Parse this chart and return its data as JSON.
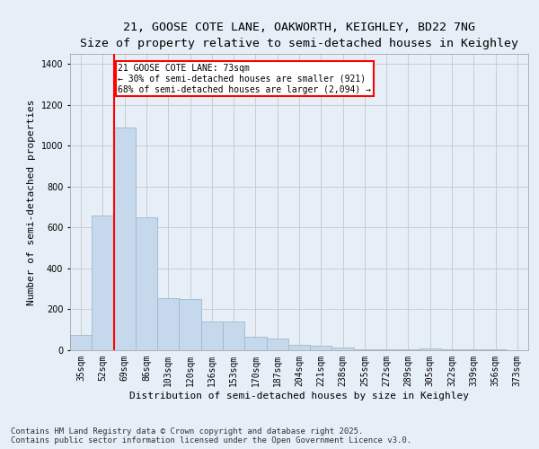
{
  "title_line1": "21, GOOSE COTE LANE, OAKWORTH, KEIGHLEY, BD22 7NG",
  "title_line2": "Size of property relative to semi-detached houses in Keighley",
  "xlabel": "Distribution of semi-detached houses by size in Keighley",
  "ylabel": "Number of semi-detached properties",
  "categories": [
    "35sqm",
    "52sqm",
    "69sqm",
    "86sqm",
    "103sqm",
    "120sqm",
    "136sqm",
    "153sqm",
    "170sqm",
    "187sqm",
    "204sqm",
    "221sqm",
    "238sqm",
    "255sqm",
    "272sqm",
    "289sqm",
    "305sqm",
    "322sqm",
    "339sqm",
    "356sqm",
    "373sqm"
  ],
  "values": [
    75,
    660,
    1090,
    650,
    255,
    250,
    140,
    140,
    65,
    55,
    28,
    20,
    12,
    5,
    4,
    4,
    8,
    6,
    4,
    3,
    2
  ],
  "bar_color": "#c6d9ec",
  "bar_edge_color": "#a0b8cc",
  "grid_color": "#cccccc",
  "background_color": "#e6eef7",
  "vline_bar_index": 2,
  "annotation_text": "21 GOOSE COTE LANE: 73sqm\n← 30% of semi-detached houses are smaller (921)\n68% of semi-detached houses are larger (2,094) →",
  "annotation_box_color": "white",
  "annotation_box_edge_color": "red",
  "vline_color": "red",
  "ylim": [
    0,
    1450
  ],
  "yticks": [
    0,
    200,
    400,
    600,
    800,
    1000,
    1200,
    1400
  ],
  "footer_line1": "Contains HM Land Registry data © Crown copyright and database right 2025.",
  "footer_line2": "Contains public sector information licensed under the Open Government Licence v3.0.",
  "title_fontsize": 9.5,
  "subtitle_fontsize": 8.5,
  "axis_label_fontsize": 8,
  "tick_fontsize": 7,
  "annotation_fontsize": 7,
  "footer_fontsize": 6.5
}
